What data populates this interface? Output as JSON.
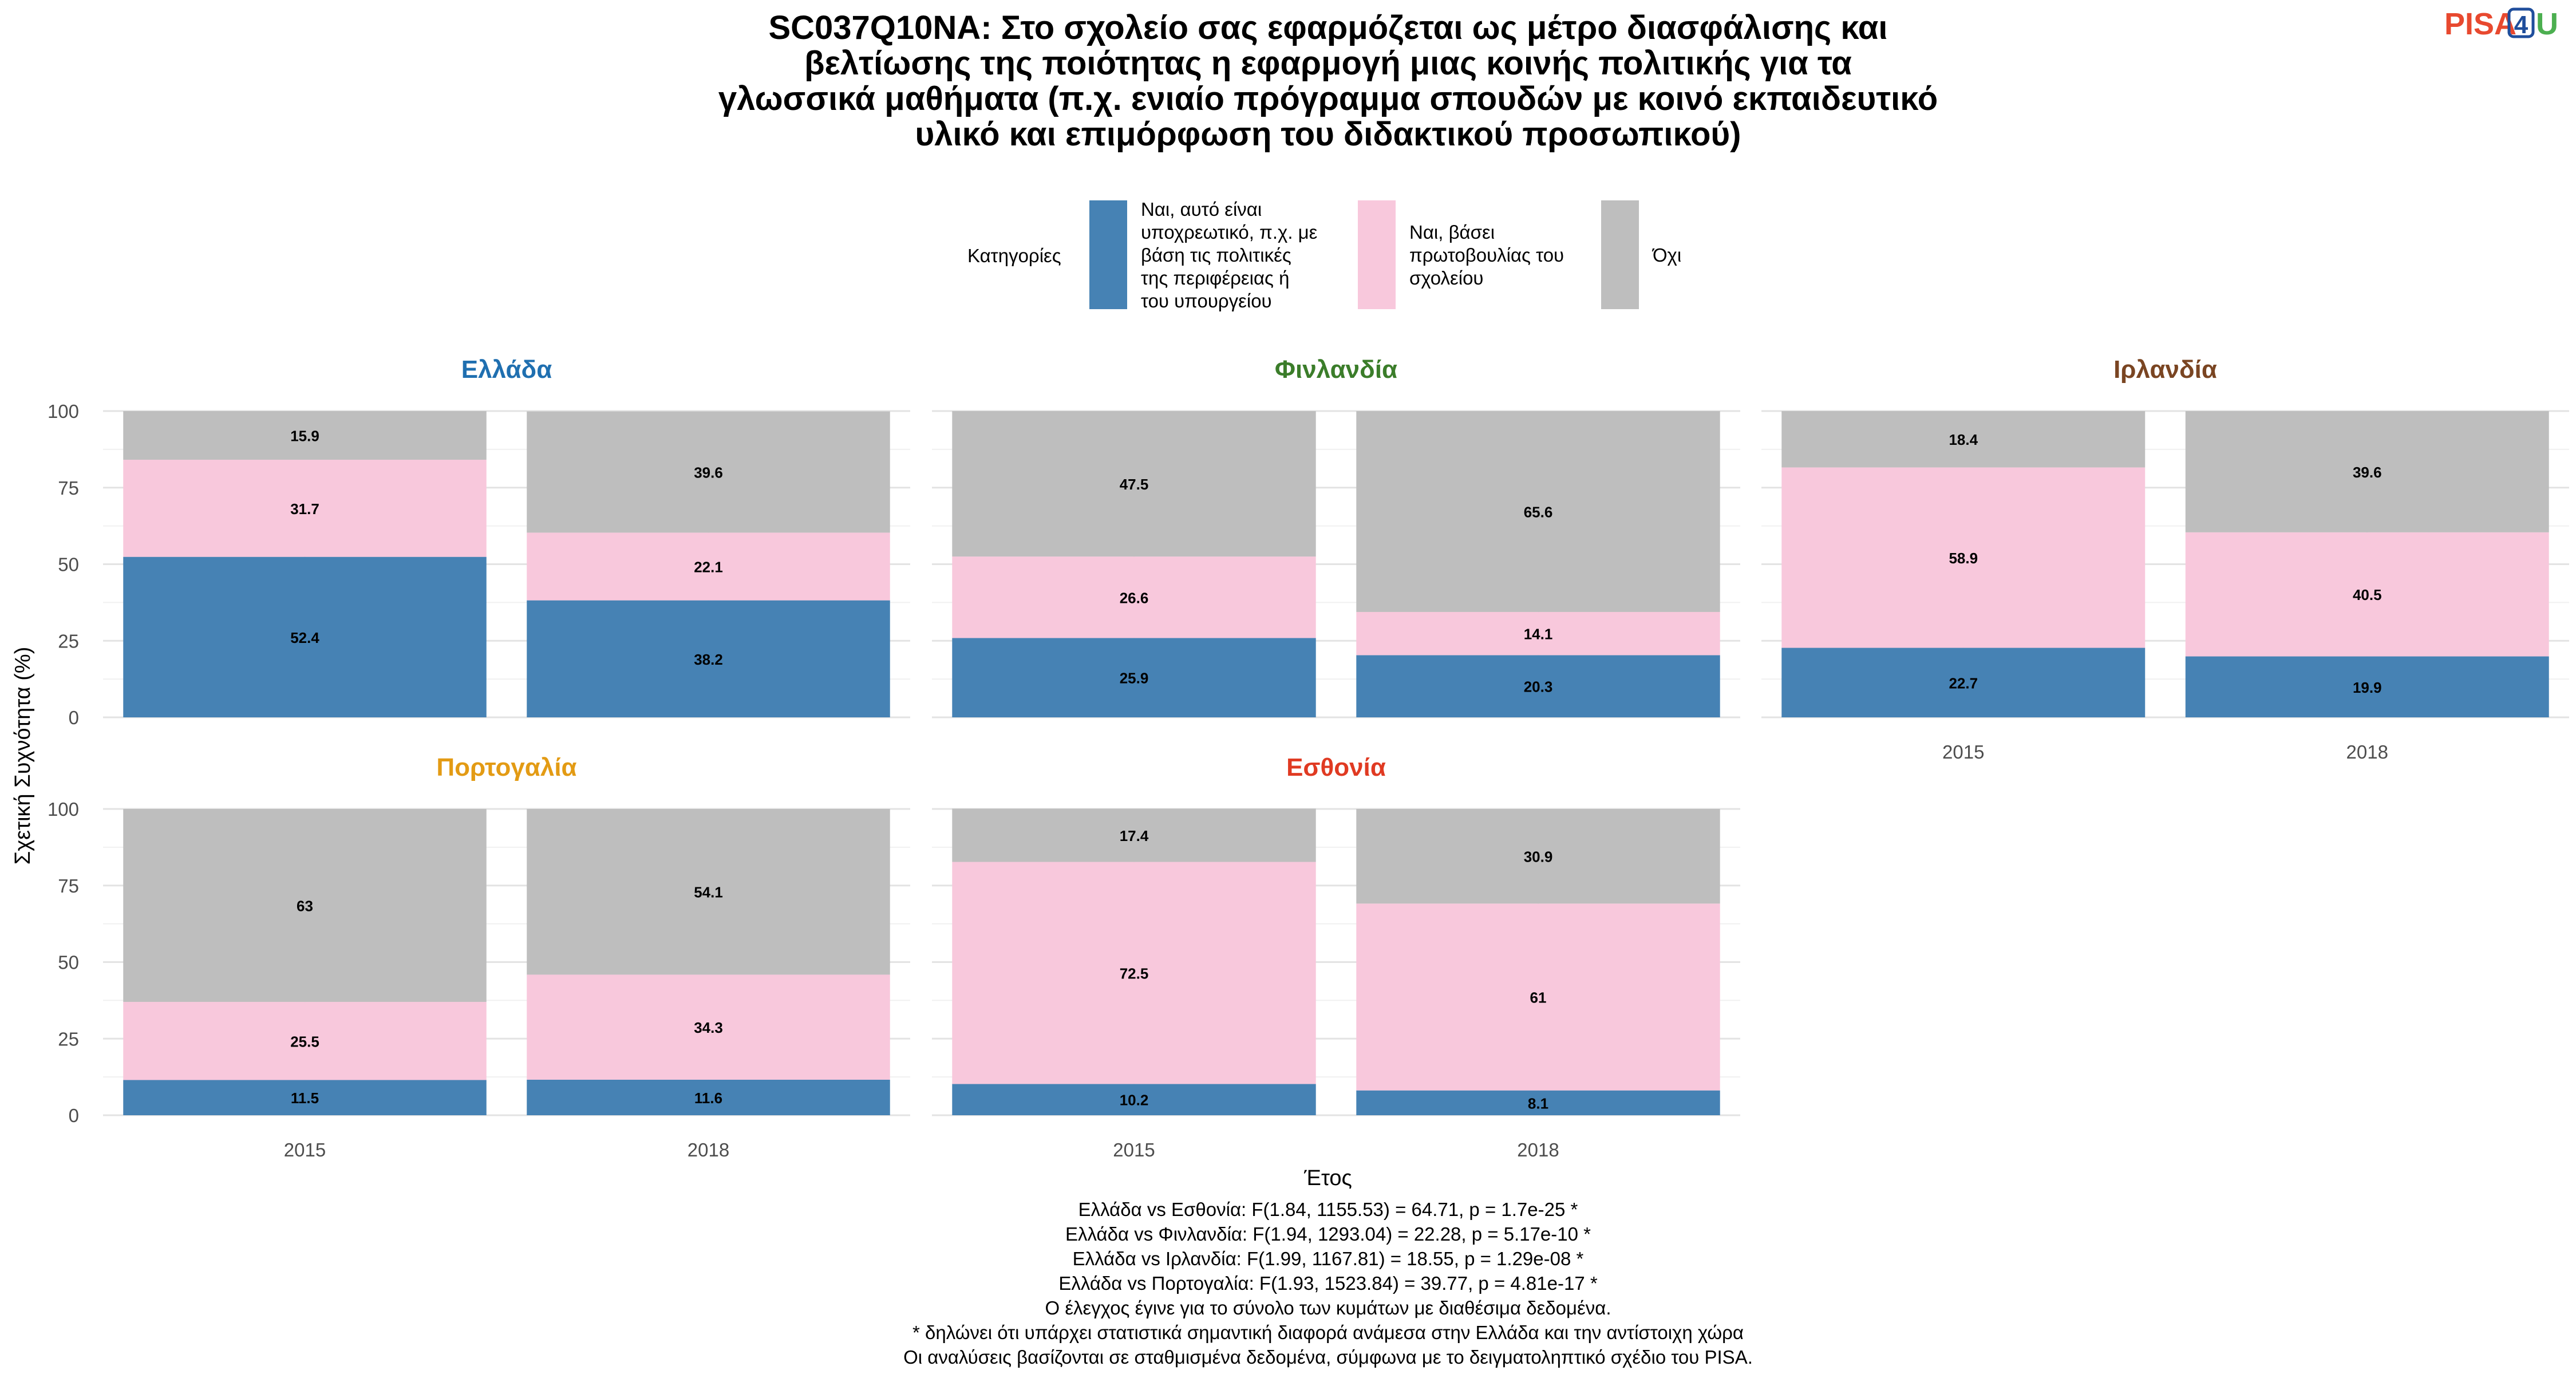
{
  "title": "SC037Q10NA: Στο σχολείο σας εφαρμόζεται ως μέτρο διασφάλισης και βελτίωσης της ποιότητας η εφαρμογή μιας κοινής πολιτικής για τα γλωσσικά μαθήματα (π.χ. ενιαίο πρόγραμμα σπουδών με κοινό εκπαιδευτικό υλικό και επιμόρφωση του διδακτικού προσωπικού)",
  "title_lines": [
    "SC037Q10NA: Στο σχολείο σας εφαρμόζεται ως μέτρο διασφάλισης και",
    "βελτίωσης της ποιότητας η εφαρμογή μιας κοινής πολιτικής για τα",
    "γλωσσικά μαθήματα (π.χ. ενιαίο πρόγραμμα σπουδών με κοινό εκπαιδευτικό",
    "υλικό και επιμόρφωση του διδακτικού προσωπικού)"
  ],
  "logo": {
    "text_a": "PISA",
    "text_b": "4",
    "text_c": "U",
    "color_a": "#e8492f",
    "color_b": "#1f4e9c",
    "color_c": "#4caf50"
  },
  "legend": {
    "title": "Κατηγορίες",
    "placement": "top",
    "items": [
      {
        "label": "Ναι, αυτό είναι υποχρεωτικό, π.χ. με βάση τις πολιτικές της περιφέρειας ή του υπουργείου",
        "label_lines": [
          "Ναι, αυτό είναι",
          "υποχρεωτικό, π.χ. με",
          "βάση τις πολιτικές",
          "της περιφέρειας ή",
          "του υπουργείου"
        ],
        "color": "#4682b4"
      },
      {
        "label": "Ναι, βάσει πρωτοβουλίας του σχολείου",
        "label_lines": [
          "Ναι, βάσει",
          "πρωτοβουλίας του",
          "σχολείου"
        ],
        "color": "#f8c8dc"
      },
      {
        "label": "Όχι",
        "label_lines": [
          "Όχι"
        ],
        "color": "#bebebe"
      }
    ]
  },
  "axes": {
    "ylabel": "Σχετική Συχνότητα (%)",
    "xlabel": "Έτος",
    "yticks": [
      "0",
      "25",
      "50",
      "75",
      "100"
    ]
  },
  "footnotes": [
    "Ελλάδα vs Εσθονία: F(1.84, 1155.53) = 64.71, p = 1.7e-25 *",
    "Ελλάδα vs Φινλανδία: F(1.94, 1293.04) = 22.28, p = 5.17e-10 *",
    "Ελλάδα vs Ιρλανδία: F(1.99, 1167.81) = 18.55, p = 1.29e-08 *",
    "Ελλάδα vs Πορτογαλία: F(1.93, 1523.84) = 39.77, p = 4.81e-17 *",
    "Ο έλεγχος έγινε για το σύνολο των κυμάτων με διαθέσιμα δεδομένα.",
    "* δηλώνει ότι υπάρχει στατιστικά σημαντική διαφορά ανάμεσα στην Ελλάδα και την αντίστοιχη χώρα",
    "Οι αναλύσεις βασίζονται σε σταθμισμένα δεδομένα, σύμφωνα με το δειγματοληπτικό σχέδιο του PISA."
  ],
  "chart_data": {
    "type": "bar",
    "stacked": true,
    "ylim": [
      0,
      100
    ],
    "grid": true,
    "categories": [
      "2015",
      "2018"
    ],
    "panels": [
      {
        "name": "Ελλάδα",
        "color": "#1f6fb0",
        "show_x_ticks": false,
        "values": {
          "2015": [
            "52.4",
            "31.7",
            "15.9"
          ],
          "2018": [
            "38.2",
            "22.1",
            "39.6"
          ]
        }
      },
      {
        "name": "Φινλανδία",
        "color": "#3b7d2a",
        "show_x_ticks": false,
        "values": {
          "2015": [
            "25.9",
            "26.6",
            "47.5"
          ],
          "2018": [
            "20.3",
            "14.1",
            "65.6"
          ]
        }
      },
      {
        "name": "Ιρλανδία",
        "color": "#7a4522",
        "show_x_ticks": true,
        "values": {
          "2015": [
            "22.7",
            "58.9",
            "18.4"
          ],
          "2018": [
            "19.9",
            "40.5",
            "39.6"
          ]
        }
      },
      {
        "name": "Πορτογαλία",
        "color": "#e39b14",
        "show_x_ticks": true,
        "values": {
          "2015": [
            "11.5",
            "25.5",
            "63"
          ],
          "2018": [
            "11.6",
            "34.3",
            "54.1"
          ]
        }
      },
      {
        "name": "Εσθονία",
        "color": "#e03a22",
        "show_x_ticks": true,
        "values": {
          "2015": [
            "10.2",
            "72.5",
            "17.4"
          ],
          "2018": [
            "8.1",
            "61",
            "30.9"
          ]
        }
      }
    ]
  }
}
